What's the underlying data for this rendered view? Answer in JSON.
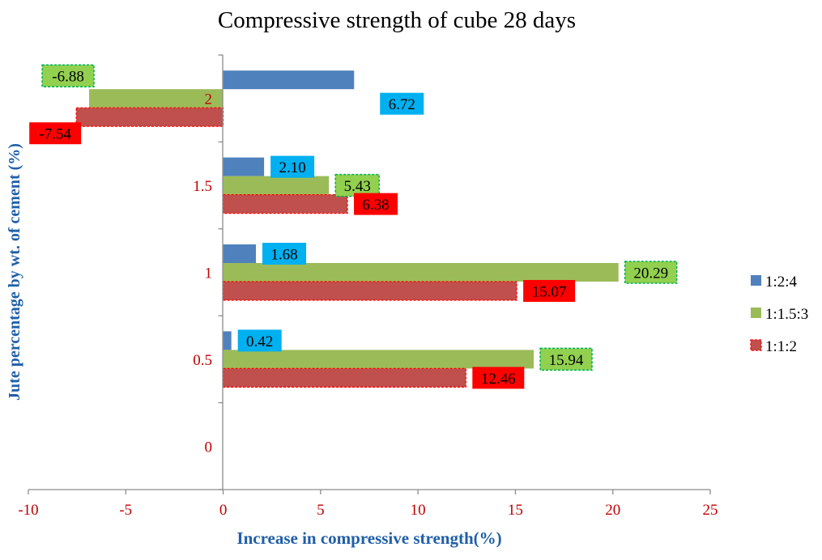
{
  "chart_data": {
    "type": "bar",
    "orientation": "horizontal",
    "title": "Compressive strength of cube 28 days",
    "xlabel": "Increase in compressive strength(%)",
    "ylabel": "Jute percentage by wt. of cement (%)",
    "categories": [
      "0",
      "0.5",
      "1",
      "1.5",
      "2"
    ],
    "xlim": [
      -10,
      25
    ],
    "xticks": [
      -10,
      -5,
      0,
      5,
      10,
      15,
      20,
      25
    ],
    "grid": false,
    "legend_position": "right",
    "series": [
      {
        "name": "1:2:4",
        "color": "#4f81bd",
        "label_bg": "#00b0f0",
        "label_border": "none",
        "values": [
          null,
          0.42,
          1.68,
          2.1,
          6.72
        ],
        "labels": [
          "",
          "0.42",
          "1.68",
          "2.10",
          "6.72"
        ]
      },
      {
        "name": "1:1.5:3",
        "color": "#9bbb59",
        "label_bg": "#92d050",
        "label_border": "#00b050",
        "values": [
          null,
          15.94,
          20.29,
          5.43,
          -6.88
        ],
        "labels": [
          "",
          "15.94",
          "20.29",
          "5.43",
          "-6.88"
        ]
      },
      {
        "name": "1:1:2",
        "color": "#c0504d",
        "label_bg": "#ff0000",
        "label_border": "none",
        "values": [
          null,
          12.46,
          15.07,
          6.38,
          -7.54
        ],
        "labels": [
          "",
          "12.46",
          "15.07",
          "6.38",
          "-7.54"
        ]
      }
    ]
  }
}
